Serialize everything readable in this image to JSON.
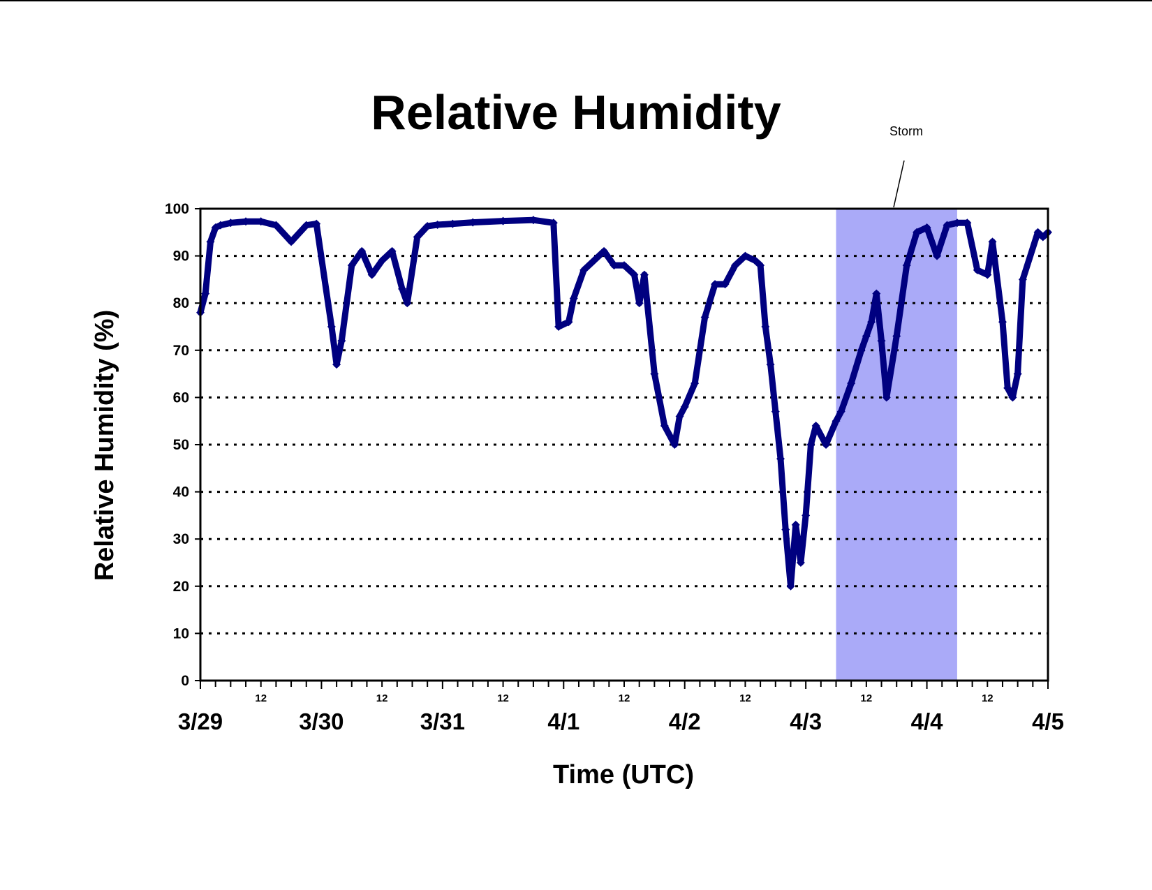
{
  "chart_data": {
    "type": "line",
    "title": "Relative Humidity",
    "xlabel": "Time (UTC)",
    "ylabel": "Relative Humidity (%)",
    "ylim": [
      0,
      100
    ],
    "yticks": [
      0,
      10,
      20,
      30,
      40,
      50,
      60,
      70,
      80,
      90,
      100
    ],
    "xlim": [
      "3/29 00",
      "4/5 00"
    ],
    "x_major_ticks": [
      "3/29",
      "3/30",
      "3/31",
      "4/1",
      "4/2",
      "4/3",
      "4/4",
      "4/5"
    ],
    "x_minor_label": "12",
    "grid": "horizontal dotted",
    "colors": {
      "series": "#000080",
      "storm": "#aaaaf8"
    },
    "annotation": {
      "text": "Storm",
      "start": "4/3 06",
      "end": "4/4 06"
    },
    "series": [
      {
        "marker": "diamond",
        "x": [
          "3/29 00",
          "3/29 01",
          "3/29 02",
          "3/29 03",
          "3/29 04",
          "3/29 06",
          "3/29 09",
          "3/29 12",
          "3/29 15",
          "3/29 18",
          "3/29 21",
          "3/29 23",
          "3/30 02",
          "3/30 03",
          "3/30 04",
          "3/30 06",
          "3/30 08",
          "3/30 10",
          "3/30 12",
          "3/30 14",
          "3/30 16",
          "3/30 17",
          "3/30 19",
          "3/30 21",
          "3/30 23",
          "3/31 02",
          "3/31 06",
          "3/31 12",
          "3/31 18",
          "3/31 22",
          "3/31 23",
          "4/1 01",
          "4/1 02",
          "4/1 04",
          "4/1 06",
          "4/1 08",
          "4/1 10",
          "4/1 12",
          "4/1 14",
          "4/1 15",
          "4/1 16",
          "4/1 18",
          "4/1 20",
          "4/1 22",
          "4/1 23",
          "4/2 00",
          "4/2 02",
          "4/2 04",
          "4/2 06",
          "4/2 08",
          "4/2 10",
          "4/2 12",
          "4/2 14",
          "4/2 15",
          "4/2 16",
          "4/2 17",
          "4/2 18",
          "4/2 19",
          "4/2 20",
          "4/2 21",
          "4/2 22",
          "4/2 23",
          "4/3 00",
          "4/3 01",
          "4/3 02",
          "4/3 04",
          "4/3 06",
          "4/3 07",
          "4/3 09",
          "4/3 11",
          "4/3 12",
          "4/3 13",
          "4/3 14",
          "4/3 15",
          "4/3 16",
          "4/3 18",
          "4/3 20",
          "4/3 22",
          "4/4 00",
          "4/4 02",
          "4/4 04",
          "4/4 06",
          "4/4 08",
          "4/4 10",
          "4/4 12",
          "4/4 13",
          "4/4 15",
          "4/4 16",
          "4/4 17",
          "4/4 18",
          "4/4 19",
          "4/4 22",
          "4/4 23",
          "4/5 00"
        ],
        "values": [
          78,
          82,
          93,
          96,
          96.5,
          97,
          97.3,
          97.3,
          96.5,
          93,
          96.5,
          96.8,
          75,
          67,
          72,
          88,
          91,
          86,
          89,
          91,
          83,
          80,
          94,
          96.3,
          96.6,
          96.8,
          97.1,
          97.4,
          97.6,
          97,
          75,
          76,
          81,
          87,
          89,
          91,
          88,
          88,
          86,
          80,
          86,
          65,
          54,
          50,
          56,
          58,
          63,
          77,
          84,
          84,
          88,
          90,
          89,
          88,
          75,
          67,
          57,
          47,
          32,
          20,
          33,
          25,
          35,
          50,
          54,
          50,
          55,
          57,
          63,
          70,
          73,
          76,
          82,
          72,
          60,
          73,
          88,
          95,
          96,
          90,
          96.5,
          97,
          97,
          87,
          86,
          93,
          76,
          62,
          60,
          65,
          85,
          95,
          94,
          95
        ]
      }
    ]
  }
}
